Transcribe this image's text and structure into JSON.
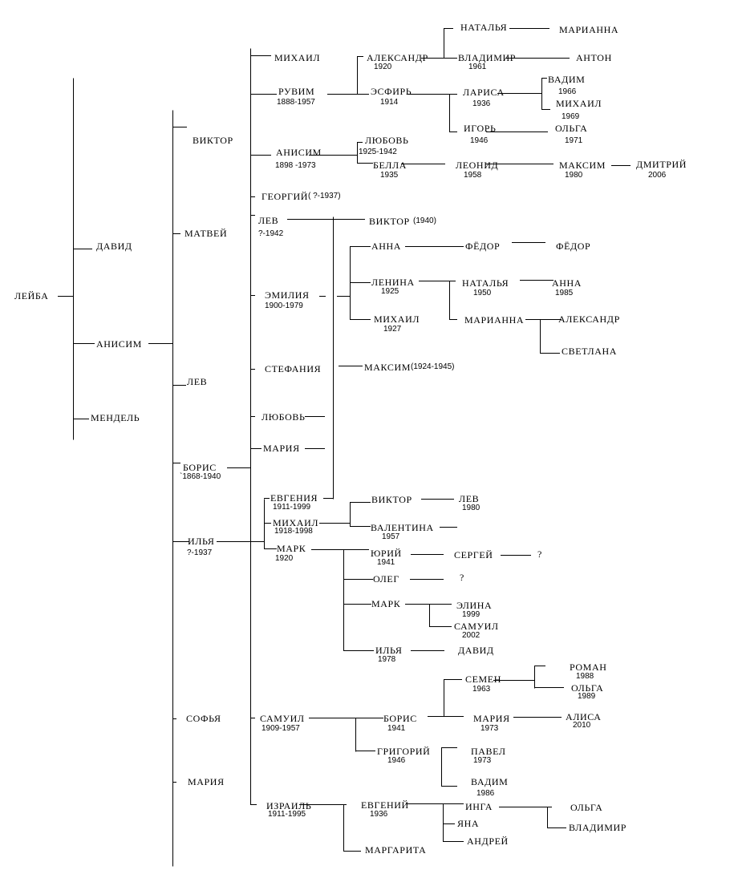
{
  "people": [
    {
      "name": "ЛЕЙБА"
    },
    {
      "name": "ДАВИД"
    },
    {
      "name": "АНИСИМ"
    },
    {
      "name": "МЕНДЕЛЬ"
    },
    {
      "name": "ВИКТОР"
    },
    {
      "name": "МАТВЕЙ"
    },
    {
      "name": "ЛЕВ"
    },
    {
      "name": "БОРИС",
      "years": "`1868-1940"
    },
    {
      "name": "ИЛЬЯ",
      "years": "?-1937"
    },
    {
      "name": "СОФЬЯ"
    },
    {
      "name": "МАРИЯ"
    },
    {
      "name": "МИХАИЛ"
    },
    {
      "name": "РУВИМ",
      "years": "1888-1957"
    },
    {
      "name": "АНИСИМ",
      "years": "1898 -1973"
    },
    {
      "name": "ГЕОРГИЙ",
      "years": "( ?-1937)"
    },
    {
      "name": "ЛЕВ",
      "years": "?-1942"
    },
    {
      "name": "ЭМИЛИЯ",
      "years": "1900-1979"
    },
    {
      "name": "СТЕФАНИЯ"
    },
    {
      "name": "ЛЮБОВЬ"
    },
    {
      "name": "МАРИЯ"
    },
    {
      "name": "ВИКТОР",
      "years": "(1940)"
    },
    {
      "name": "АННА"
    },
    {
      "name": "ФЁДОР"
    },
    {
      "name": "ФЁДОР"
    },
    {
      "name": "ЛЕНИНА",
      "years": "1925"
    },
    {
      "name": "МИХАИЛ",
      "years": "1927"
    },
    {
      "name": "НАТАЛЬЯ",
      "years": "1950"
    },
    {
      "name": "МАРИАННА"
    },
    {
      "name": "АННА",
      "years": "1985"
    },
    {
      "name": "АЛЕКСАНДР"
    },
    {
      "name": "СВЕТЛАНА"
    },
    {
      "name": "МАКСИМ",
      "years": "(1924-1945)"
    },
    {
      "name": "ЕВГЕНИЯ",
      "years": "1911-1999"
    },
    {
      "name": "МИХАИЛ",
      "years": "1918-1998"
    },
    {
      "name": "МАРК",
      "years": "1920"
    },
    {
      "name": "ВИКТОР"
    },
    {
      "name": "ВАЛЕНТИНА",
      "years": "1957"
    },
    {
      "name": "ЛЕВ",
      "years": "1980"
    },
    {
      "name": "ЮРИЙ",
      "years": "1941"
    },
    {
      "name": "СЕРГЕЙ"
    },
    {
      "name": "?"
    },
    {
      "name": "ОЛЕГ"
    },
    {
      "name": "?"
    },
    {
      "name": "МАРК"
    },
    {
      "name": "ЭЛИНА",
      "years": "1999"
    },
    {
      "name": "САМУИЛ",
      "years": "2002"
    },
    {
      "name": "ИЛЬЯ",
      "years": "1978"
    },
    {
      "name": "ДАВИД"
    },
    {
      "name": "САМУИЛ",
      "years": "1909-1957"
    },
    {
      "name": "БОРИС",
      "years": "1941"
    },
    {
      "name": "ГРИГОРИЙ",
      "years": "1946"
    },
    {
      "name": "СЕМЕН",
      "years": "1963"
    },
    {
      "name": "МАРИЯ",
      "years": "1973"
    },
    {
      "name": "РОМАН",
      "years": "1988"
    },
    {
      "name": "ОЛЬГА",
      "years": "1989"
    },
    {
      "name": "АЛИСА",
      "years": "2010"
    },
    {
      "name": "ПАВЕЛ",
      "years": "1973"
    },
    {
      "name": "ВАДИМ",
      "years": "1986"
    },
    {
      "name": "ИЗРАИЛЬ",
      "years": "1911-1995"
    },
    {
      "name": "ЕВГЕНИЙ",
      "years": "1936"
    },
    {
      "name": "МАРГАРИТА"
    },
    {
      "name": "ИНГА"
    },
    {
      "name": "ЯНА"
    },
    {
      "name": "АНДРЕЙ"
    },
    {
      "name": "ОЛЬГА"
    },
    {
      "name": "ВЛАДИМИР"
    },
    {
      "name": "ЛЮБОВЬ",
      "years": "1925-1942"
    },
    {
      "name": "БЕЛЛА",
      "years": "1935"
    },
    {
      "name": "ЛЕОНИД",
      "years": "1958"
    },
    {
      "name": "МАКСИМ",
      "years": "1980"
    },
    {
      "name": "ДМИТРИЙ",
      "years": "2006"
    },
    {
      "name": "АЛЕКСАНДР",
      "years": "1920"
    },
    {
      "name": "ЭСФИРЬ",
      "years": "1914"
    },
    {
      "name": "НАТАЛЬЯ"
    },
    {
      "name": "МАРИАННА"
    },
    {
      "name": "ВЛАДИМИР",
      "years": "1961"
    },
    {
      "name": "АНТОН"
    },
    {
      "name": "ЛАРИСА",
      "years": "1936"
    },
    {
      "name": "ИГОРЬ",
      "years": "1946"
    },
    {
      "name": "ВАДИМ",
      "years": "1966"
    },
    {
      "name": "МИХАИЛ",
      "years": "1969"
    },
    {
      "name": "ОЛЬГА",
      "years": "1971"
    }
  ]
}
